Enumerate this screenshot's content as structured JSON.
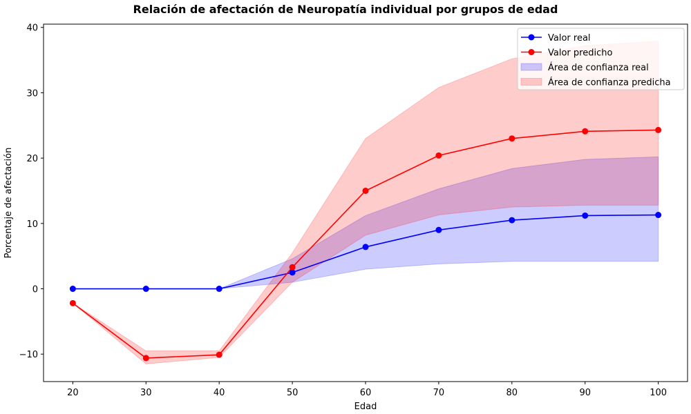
{
  "chart_data": {
    "type": "line",
    "title": "Relación de afectación de Neuropatía individual por grupos de edad",
    "xlabel": "Edad",
    "ylabel": "Porcentaje de afectación",
    "x": [
      20,
      30,
      40,
      50,
      60,
      70,
      80,
      90,
      100
    ],
    "xticks": [
      "20",
      "30",
      "40",
      "50",
      "60",
      "70",
      "80",
      "90",
      "100"
    ],
    "yticks": [
      "−10",
      "0",
      "10",
      "20",
      "30",
      "40"
    ],
    "xlim": [
      16,
      104
    ],
    "ylim": [
      -14.2,
      40.5
    ],
    "grid": false,
    "legend_position": "top-right",
    "series": [
      {
        "name": "Valor real",
        "color": "#0000ff",
        "values": [
          0,
          0,
          0,
          2.5,
          6.4,
          9.0,
          10.5,
          11.2,
          11.3
        ]
      },
      {
        "name": "Valor predicho",
        "color": "#ff0000",
        "values": [
          -2.2,
          -10.6,
          -10.1,
          3.3,
          15.0,
          20.4,
          23.0,
          24.1,
          24.3
        ]
      }
    ],
    "bands": [
      {
        "name": "Área de confianza real",
        "color": "#0000ff",
        "opacity": 0.2,
        "lower": [
          0,
          0,
          0,
          1.0,
          3.0,
          3.8,
          4.2,
          4.2,
          4.2
        ],
        "upper": [
          0,
          0,
          0,
          4.6,
          11.2,
          15.3,
          18.4,
          19.8,
          20.2
        ]
      },
      {
        "name": "Área de confianza predicha",
        "color": "#ff0000",
        "opacity": 0.2,
        "lower": [
          -2.2,
          -11.5,
          -10.5,
          1.0,
          8.2,
          11.3,
          12.5,
          12.8,
          12.8
        ],
        "upper": [
          -2.2,
          -9.5,
          -9.5,
          5.5,
          23.0,
          30.8,
          35.2,
          37.2,
          37.9
        ]
      }
    ]
  }
}
